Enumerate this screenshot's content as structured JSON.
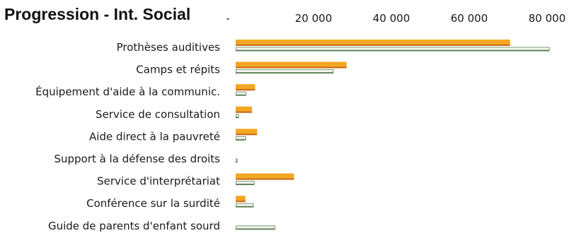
{
  "chart_data": {
    "type": "bar",
    "orientation": "horizontal",
    "title": "Progression - Int. Social",
    "xlabel": "",
    "ylabel": "",
    "xlim": [
      0,
      80000
    ],
    "x_ticks": [
      "-",
      "20 000",
      "40 000",
      "60 000",
      "80 000"
    ],
    "grid": false,
    "legend": "none",
    "categories": [
      "Prothèses auditives",
      "Camps et répits",
      "Équipement d'aide à la communic.",
      "Service de consultation",
      "Aide direct à la pauvreté",
      "Support à la défense des droits",
      "Service d'interprétariat",
      "Conférence sur la surdité",
      "Guide de parents d'enfant sourd"
    ],
    "series": [
      {
        "color": "#f4a722",
        "values": [
          70500,
          28500,
          5000,
          4200,
          5500,
          0,
          15000,
          2500,
          0
        ]
      },
      {
        "color": "#7c9a72",
        "values": [
          80500,
          25000,
          2600,
          700,
          2500,
          300,
          4700,
          4500,
          10000
        ]
      }
    ]
  }
}
